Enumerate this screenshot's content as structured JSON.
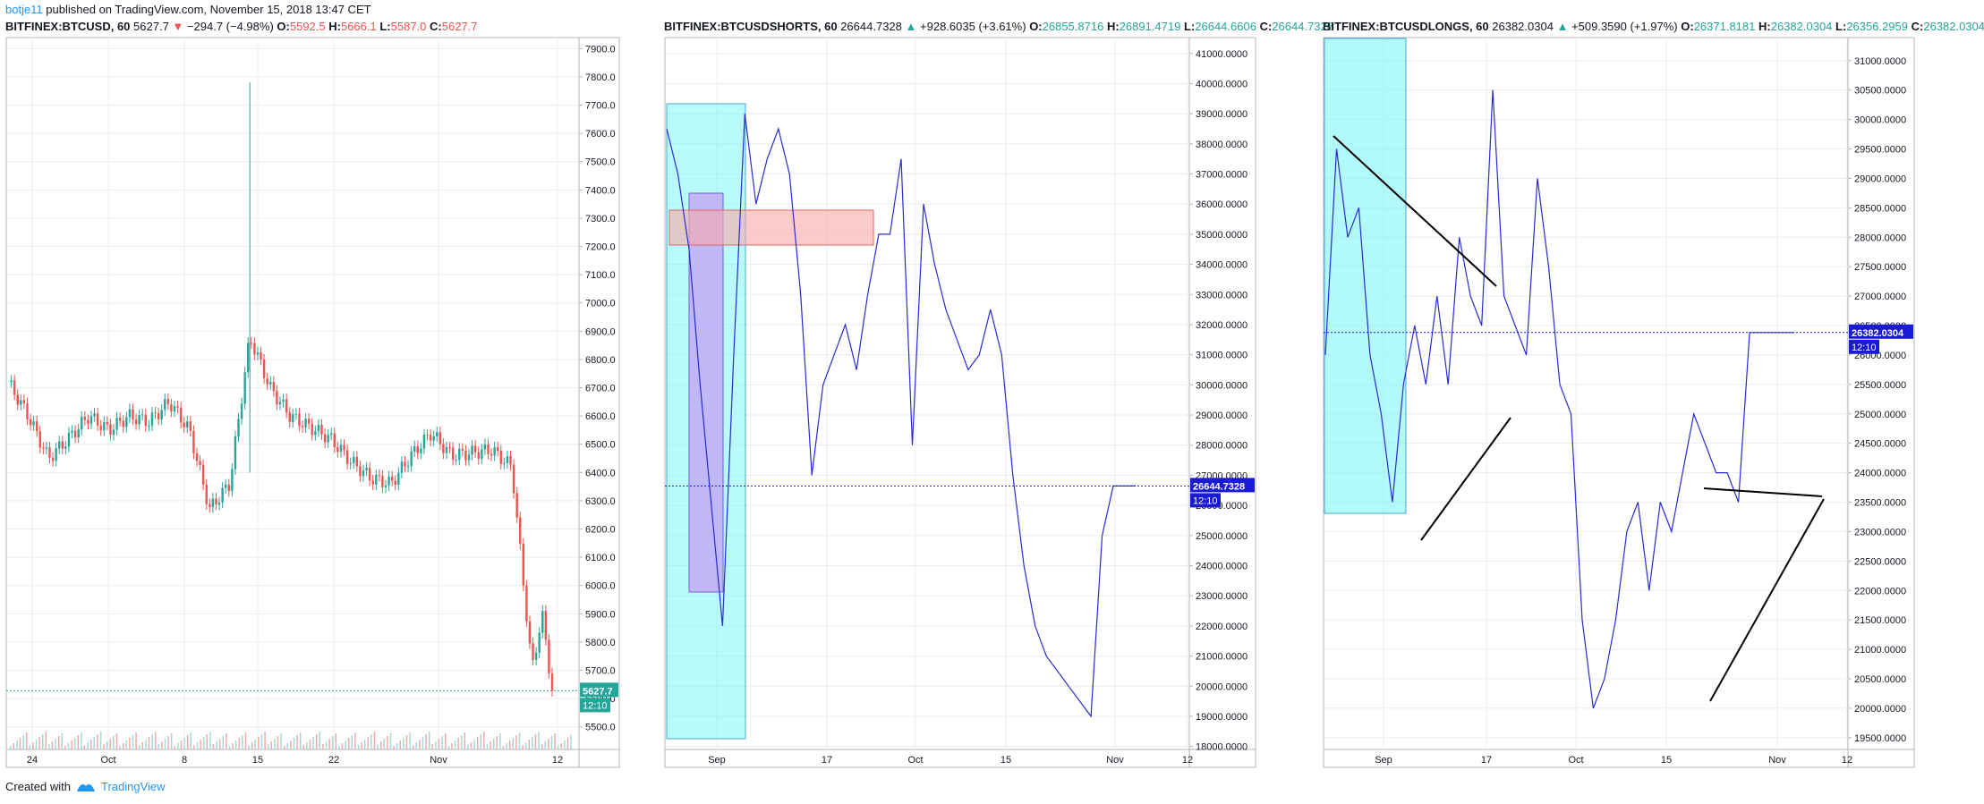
{
  "header": {
    "user": "botje11",
    "text": " published on TradingView.com, November 15, 2018 13:47 CET"
  },
  "footer": {
    "created_with": "Created with",
    "brand": "TradingView"
  },
  "panels": [
    {
      "symbol": "BITFINEX:BTCUSD, 60",
      "last": "5627.7",
      "change_arrow": "▼",
      "change": "−294.7 (−4.98%)",
      "o_label": "O:",
      "o": "5592.5",
      "h_label": "H:",
      "h": "5666.1",
      "l_label": "L:",
      "l": "5587.0",
      "c_label": "C:",
      "c": "5627.7"
    },
    {
      "symbol": "BITFINEX:BTCUSDSHORTS, 60",
      "last": "26644.7328",
      "change_arrow": "▲",
      "change": "+928.6035 (+3.61%)",
      "o_label": "O:",
      "o": "26855.8716",
      "h_label": "H:",
      "h": "26891.4719",
      "l_label": "L:",
      "l": "26644.6606",
      "c_label": "C:",
      "c": "26644.7328"
    },
    {
      "symbol": "BITFINEX:BTCUSDLONGS, 60",
      "last": "26382.0304",
      "change_arrow": "▲",
      "change": "+509.3590 (+1.97%)",
      "o_label": "O:",
      "o": "26371.8181",
      "h_label": "H:",
      "h": "26382.0304",
      "l_label": "L:",
      "l": "26356.2959",
      "c_label": "C:",
      "c": "26382.0304"
    }
  ],
  "chart_data": [
    {
      "type": "candlestick",
      "title": "BITFINEX:BTCUSD, 60",
      "x_ticks": [
        "24",
        "Oct",
        "8",
        "15",
        "22",
        "Nov",
        "12"
      ],
      "y_ticks": [
        5500,
        5600,
        5700,
        5800,
        5900,
        6000,
        6100,
        6200,
        6300,
        6400,
        6500,
        6600,
        6700,
        6800,
        6900,
        7000,
        7100,
        7200,
        7300,
        7400,
        7500,
        7600,
        7700,
        7800,
        7900
      ],
      "ylim": [
        5420,
        7920
      ],
      "y_tick_format": "0.0",
      "x": [
        0,
        2,
        4,
        6,
        8,
        10,
        12,
        14,
        16,
        18,
        20,
        22,
        24,
        26,
        28,
        30,
        32,
        34,
        36,
        38,
        40,
        42,
        44,
        46,
        48,
        50,
        52,
        53,
        54
      ],
      "values": [
        6720,
        6600,
        6450,
        6520,
        6600,
        6550,
        6600,
        6580,
        6650,
        6550,
        6270,
        6360,
        6880,
        6700,
        6600,
        6560,
        6520,
        6440,
        6380,
        6360,
        6460,
        6540,
        6460,
        6470,
        6480,
        6420,
        5700,
        5900,
        5627.7
      ],
      "spike_high": 7780,
      "last_price": "5627.7",
      "countdown": "12:10",
      "volume_label": "Volume"
    },
    {
      "type": "line",
      "title": "BITFINEX:BTCUSDSHORTS, 60",
      "x_ticks": [
        "Sep",
        "17",
        "Oct",
        "15",
        "Nov",
        "12"
      ],
      "y_ticks": [
        18000,
        19000,
        20000,
        21000,
        22000,
        23000,
        24000,
        25000,
        26000,
        27000,
        28000,
        29000,
        30000,
        31000,
        32000,
        33000,
        34000,
        35000,
        36000,
        37000,
        38000,
        39000,
        40000,
        41000
      ],
      "ylim": [
        17900,
        41350
      ],
      "y_tick_format": "0.0000",
      "x": [
        0,
        1,
        2,
        3,
        4,
        5,
        6,
        7,
        8,
        9,
        10,
        11,
        12,
        13,
        14,
        15,
        16,
        17,
        18,
        19,
        20,
        21,
        22,
        23,
        24,
        25,
        26,
        27,
        28,
        29,
        30,
        31,
        32,
        33,
        34,
        35,
        36,
        37,
        38,
        39,
        40,
        41,
        42
      ],
      "values": [
        38500,
        37000,
        34500,
        30000,
        26000,
        22000,
        31000,
        39000,
        36000,
        37500,
        38500,
        37000,
        33000,
        27000,
        30000,
        31000,
        32000,
        30500,
        33000,
        35000,
        35000,
        37500,
        28000,
        36000,
        34000,
        32500,
        31500,
        30500,
        31000,
        32500,
        31000,
        27000,
        24000,
        22000,
        21000,
        20500,
        20000,
        19500,
        19000,
        25000,
        26644.7328,
        26644.7328,
        26644.7328
      ],
      "last_price": "26644.7328",
      "countdown": "12:10"
    },
    {
      "type": "line",
      "title": "BITFINEX:BTCUSDLONGS, 60",
      "x_ticks": [
        "Sep",
        "17",
        "Oct",
        "15",
        "Nov",
        "12"
      ],
      "y_ticks": [
        19500,
        20000,
        20500,
        21000,
        21500,
        22000,
        22500,
        23000,
        23500,
        24000,
        24500,
        25000,
        25500,
        26000,
        26500,
        27000,
        27500,
        28000,
        28500,
        29000,
        29500,
        30000,
        30500,
        31000
      ],
      "ylim": [
        19300,
        31300
      ],
      "y_tick_format": "0.0000",
      "x": [
        0,
        1,
        2,
        3,
        4,
        5,
        6,
        7,
        8,
        9,
        10,
        11,
        12,
        13,
        14,
        15,
        16,
        17,
        18,
        19,
        20,
        21,
        22,
        23,
        24,
        25,
        26,
        27,
        28,
        29,
        30,
        31,
        32,
        33,
        34,
        35,
        36,
        37,
        38,
        39,
        40,
        41,
        42
      ],
      "values": [
        26000,
        29500,
        28000,
        28500,
        26000,
        25000,
        23500,
        25500,
        26500,
        25500,
        27000,
        25500,
        28000,
        27000,
        26500,
        30500,
        27000,
        26500,
        26000,
        29000,
        27500,
        25500,
        25000,
        21500,
        20000,
        20500,
        21500,
        23000,
        23500,
        22000,
        23500,
        23000,
        24000,
        25000,
        24500,
        24000,
        24000,
        23500,
        26382.0304,
        26382.0304,
        26382.0304,
        26382.0304,
        26382.0304
      ],
      "last_price": "26382.0304",
      "countdown": "12:10"
    }
  ],
  "colors": {
    "grid": "#e9ecf1",
    "line": "#2a2ad6",
    "up": "#26a69a",
    "down": "#ef5350",
    "cyan_box": "#7ff5f5",
    "purple_box": "#c39bf5",
    "red_box": "#f9a9a9",
    "price_label_bg": "#1a1ad6"
  }
}
